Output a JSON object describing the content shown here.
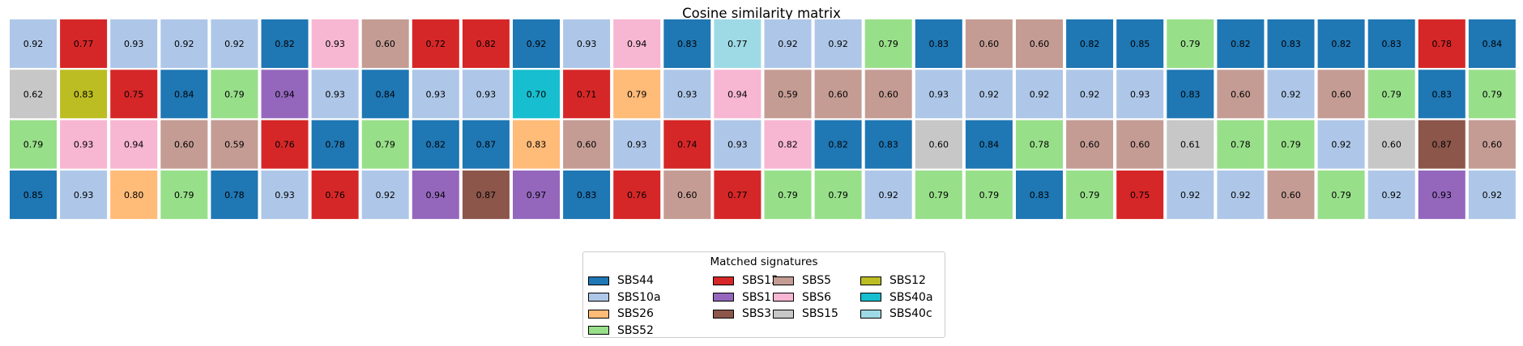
{
  "chart_data": {
    "type": "heatmap",
    "title": "Cosine similarity matrix",
    "legend": {
      "title": "Matched signatures",
      "placement": "bottom-center",
      "entries": [
        {
          "name": "SBS44",
          "color": "#1f77b4"
        },
        {
          "name": "SBS10a",
          "color": "#aec7e8"
        },
        {
          "name": "SBS26",
          "color": "#ffbb78"
        },
        {
          "name": "SBS52",
          "color": "#98df8a"
        },
        {
          "name": "SBS13",
          "color": "#d62728"
        },
        {
          "name": "SBS1",
          "color": "#9467bd"
        },
        {
          "name": "SBS3",
          "color": "#8c564b"
        },
        {
          "name": "SBS5",
          "color": "#c49c94"
        },
        {
          "name": "SBS6",
          "color": "#f7b6d2"
        },
        {
          "name": "SBS15",
          "color": "#c7c7c7"
        },
        {
          "name": "SBS12",
          "color": "#bcbd22"
        },
        {
          "name": "SBS40a",
          "color": "#17becf"
        },
        {
          "name": "SBS40c",
          "color": "#9edae5"
        }
      ]
    },
    "rows": [
      {
        "values": [
          "0.92",
          "0.77",
          "0.93",
          "0.92",
          "0.92",
          "0.82",
          "0.93",
          "0.60",
          "0.72",
          "0.82",
          "0.92",
          "0.93",
          "0.94",
          "0.83",
          "0.77",
          "0.92",
          "0.92",
          "0.79",
          "0.83",
          "0.60",
          "0.60",
          "0.82",
          "0.85",
          "0.79",
          "0.82",
          "0.83",
          "0.82",
          "0.83",
          "0.78",
          "0.84"
        ],
        "signatures": [
          "SBS10a",
          "SBS13",
          "SBS10a",
          "SBS10a",
          "SBS10a",
          "SBS44",
          "SBS6",
          "SBS5",
          "SBS13",
          "SBS13",
          "SBS44",
          "SBS10a",
          "SBS6",
          "SBS44",
          "SBS40c",
          "SBS10a",
          "SBS10a",
          "SBS52",
          "SBS44",
          "SBS5",
          "SBS5",
          "SBS44",
          "SBS44",
          "SBS52",
          "SBS44",
          "SBS44",
          "SBS44",
          "SBS44",
          "SBS13",
          "SBS44"
        ]
      },
      {
        "values": [
          "0.62",
          "0.83",
          "0.75",
          "0.84",
          "0.79",
          "0.94",
          "0.93",
          "0.84",
          "0.93",
          "0.93",
          "0.70",
          "0.71",
          "0.79",
          "0.93",
          "0.94",
          "0.59",
          "0.60",
          "0.60",
          "0.93",
          "0.92",
          "0.92",
          "0.92",
          "0.93",
          "0.83",
          "0.60",
          "0.92",
          "0.60",
          "0.79",
          "0.83",
          "0.79"
        ],
        "signatures": [
          "SBS15",
          "SBS12",
          "SBS13",
          "SBS44",
          "SBS52",
          "SBS1",
          "SBS10a",
          "SBS44",
          "SBS10a",
          "SBS10a",
          "SBS40a",
          "SBS13",
          "SBS26",
          "SBS10a",
          "SBS6",
          "SBS5",
          "SBS5",
          "SBS5",
          "SBS10a",
          "SBS10a",
          "SBS10a",
          "SBS10a",
          "SBS10a",
          "SBS44",
          "SBS5",
          "SBS10a",
          "SBS5",
          "SBS52",
          "SBS44",
          "SBS52"
        ]
      },
      {
        "values": [
          "0.79",
          "0.93",
          "0.94",
          "0.60",
          "0.59",
          "0.76",
          "0.78",
          "0.79",
          "0.82",
          "0.87",
          "0.83",
          "0.60",
          "0.93",
          "0.74",
          "0.93",
          "0.82",
          "0.82",
          "0.83",
          "0.60",
          "0.84",
          "0.78",
          "0.60",
          "0.60",
          "0.61",
          "0.78",
          "0.79",
          "0.92",
          "0.60",
          "0.87",
          "0.60"
        ],
        "signatures": [
          "SBS52",
          "SBS6",
          "SBS6",
          "SBS5",
          "SBS5",
          "SBS13",
          "SBS44",
          "SBS52",
          "SBS44",
          "SBS44",
          "SBS26",
          "SBS5",
          "SBS10a",
          "SBS13",
          "SBS10a",
          "SBS6",
          "SBS44",
          "SBS44",
          "SBS15",
          "SBS44",
          "SBS52",
          "SBS5",
          "SBS5",
          "SBS15",
          "SBS52",
          "SBS52",
          "SBS10a",
          "SBS15",
          "SBS3",
          "SBS5"
        ]
      },
      {
        "values": [
          "0.85",
          "0.93",
          "0.80",
          "0.79",
          "0.78",
          "0.93",
          "0.76",
          "0.92",
          "0.94",
          "0.87",
          "0.97",
          "0.83",
          "0.76",
          "0.60",
          "0.77",
          "0.79",
          "0.79",
          "0.92",
          "0.79",
          "0.79",
          "0.83",
          "0.79",
          "0.75",
          "0.92",
          "0.92",
          "0.60",
          "0.79",
          "0.92",
          "0.93",
          "0.92"
        ],
        "signatures": [
          "SBS44",
          "SBS10a",
          "SBS26",
          "SBS52",
          "SBS44",
          "SBS10a",
          "SBS13",
          "SBS10a",
          "SBS1",
          "SBS3",
          "SBS1",
          "SBS44",
          "SBS13",
          "SBS5",
          "SBS13",
          "SBS52",
          "SBS52",
          "SBS10a",
          "SBS52",
          "SBS52",
          "SBS44",
          "SBS52",
          "SBS13",
          "SBS10a",
          "SBS10a",
          "SBS5",
          "SBS52",
          "SBS10a",
          "SBS1",
          "SBS10a"
        ]
      }
    ]
  }
}
